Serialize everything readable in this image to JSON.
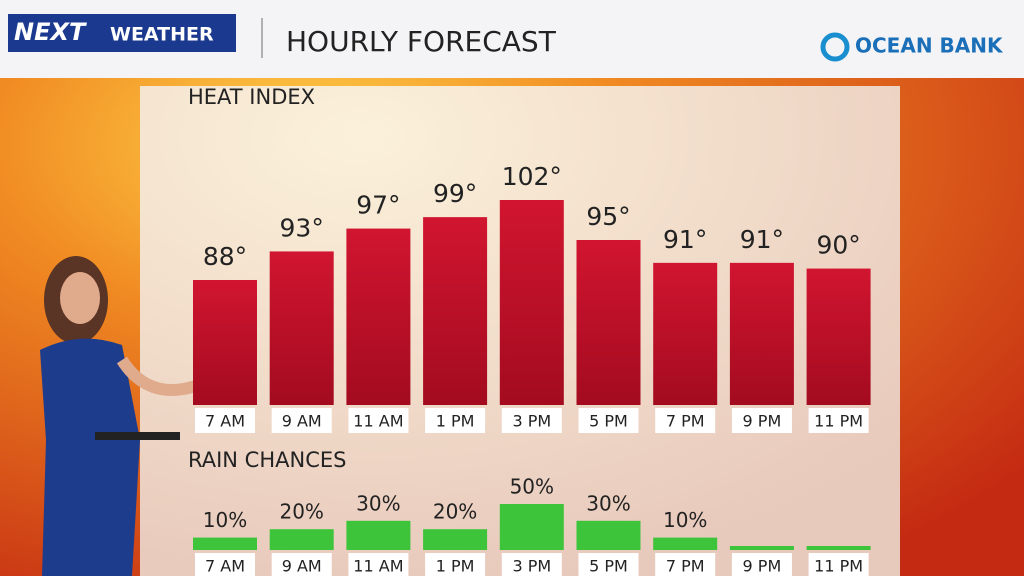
{
  "header": {
    "logo": "NEXT",
    "logo_sub": "WEATHER",
    "title": "HOURLY FORECAST",
    "sponsor": "OCEAN BANK"
  },
  "chart_data": [
    {
      "type": "bar",
      "title": "HEAT INDEX",
      "categories": [
        "7 AM",
        "9 AM",
        "11 AM",
        "1 PM",
        "3 PM",
        "5 PM",
        "7 PM",
        "9 PM",
        "11 PM"
      ],
      "values": [
        88,
        93,
        97,
        99,
        102,
        95,
        91,
        91,
        90
      ],
      "value_labels": [
        "88°",
        "93°",
        "97°",
        "99°",
        "102°",
        "95°",
        "91°",
        "91°",
        "90°"
      ],
      "color": "#c4102c"
    },
    {
      "type": "bar",
      "title": "RAIN CHANCES",
      "categories": [
        "7 AM",
        "9 AM",
        "11 AM",
        "1 PM",
        "3 PM",
        "5 PM",
        "7 PM",
        "9 PM",
        "11 PM"
      ],
      "values": [
        10,
        20,
        30,
        20,
        50,
        30,
        10,
        0,
        0
      ],
      "value_labels": [
        "10%",
        "20%",
        "30%",
        "20%",
        "50%",
        "30%",
        "10%",
        null,
        null
      ],
      "color": "#3ec43a"
    }
  ]
}
